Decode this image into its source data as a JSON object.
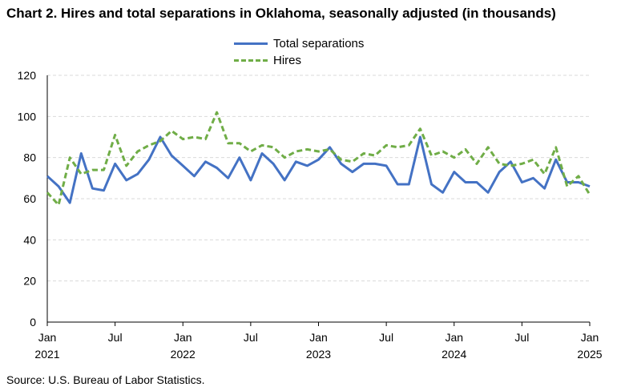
{
  "title": "Chart 2. Hires and total separations in Oklahoma, seasonally adjusted (in thousands)",
  "source": "Source: U.S. Bureau of Labor Statistics.",
  "colors": {
    "total_separations": "#4472c4",
    "hires": "#70ad47",
    "grid": "#d9d9d9",
    "axis": "#000000"
  },
  "chart_data": {
    "type": "line",
    "title": "Chart 2. Hires and total separations in Oklahoma, seasonally adjusted (in thousands)",
    "xlabel": "",
    "ylabel": "",
    "ylim": [
      0,
      120
    ],
    "yticks": [
      0,
      20,
      40,
      60,
      80,
      100,
      120
    ],
    "grid": "horizontal dashed",
    "legend_position": "top-center",
    "x": [
      "2021-01",
      "2021-02",
      "2021-03",
      "2021-04",
      "2021-05",
      "2021-06",
      "2021-07",
      "2021-08",
      "2021-09",
      "2021-10",
      "2021-11",
      "2021-12",
      "2022-01",
      "2022-02",
      "2022-03",
      "2022-04",
      "2022-05",
      "2022-06",
      "2022-07",
      "2022-08",
      "2022-09",
      "2022-10",
      "2022-11",
      "2022-12",
      "2023-01",
      "2023-02",
      "2023-03",
      "2023-04",
      "2023-05",
      "2023-06",
      "2023-07",
      "2023-08",
      "2023-09",
      "2023-10",
      "2023-11",
      "2023-12",
      "2024-01",
      "2024-02",
      "2024-03",
      "2024-04",
      "2024-05",
      "2024-06",
      "2024-07",
      "2024-08",
      "2024-09",
      "2024-10",
      "2024-11",
      "2024-12",
      "2025-01"
    ],
    "x_tick_labels": [
      {
        "month": "Jan",
        "year": "2021"
      },
      {
        "month": "Jul",
        "year": ""
      },
      {
        "month": "Jan",
        "year": "2022"
      },
      {
        "month": "Jul",
        "year": ""
      },
      {
        "month": "Jan",
        "year": "2023"
      },
      {
        "month": "Jul",
        "year": ""
      },
      {
        "month": "Jan",
        "year": "2024"
      },
      {
        "month": "Jul",
        "year": ""
      },
      {
        "month": "Jan",
        "year": "2025"
      }
    ],
    "series": [
      {
        "name": "Total separations",
        "style": "solid",
        "values": [
          71,
          66,
          58,
          82,
          65,
          64,
          77,
          69,
          72,
          79,
          90,
          81,
          76,
          71,
          78,
          75,
          70,
          80,
          69,
          82,
          77,
          69,
          78,
          76,
          79,
          85,
          77,
          73,
          77,
          77,
          76,
          67,
          67,
          90,
          67,
          63,
          73,
          68,
          68,
          63,
          73,
          78,
          68,
          70,
          65,
          79,
          68,
          68,
          66
        ]
      },
      {
        "name": "Hires",
        "style": "dashed",
        "values": [
          63,
          57,
          80,
          72,
          74,
          74,
          91,
          76,
          83,
          86,
          88,
          93,
          89,
          90,
          89,
          102,
          87,
          87,
          83,
          86,
          85,
          80,
          83,
          84,
          83,
          84,
          79,
          78,
          82,
          81,
          86,
          85,
          86,
          94,
          81,
          83,
          80,
          84,
          77,
          85,
          77,
          76,
          77,
          79,
          72,
          85,
          66,
          71,
          62
        ]
      }
    ]
  }
}
